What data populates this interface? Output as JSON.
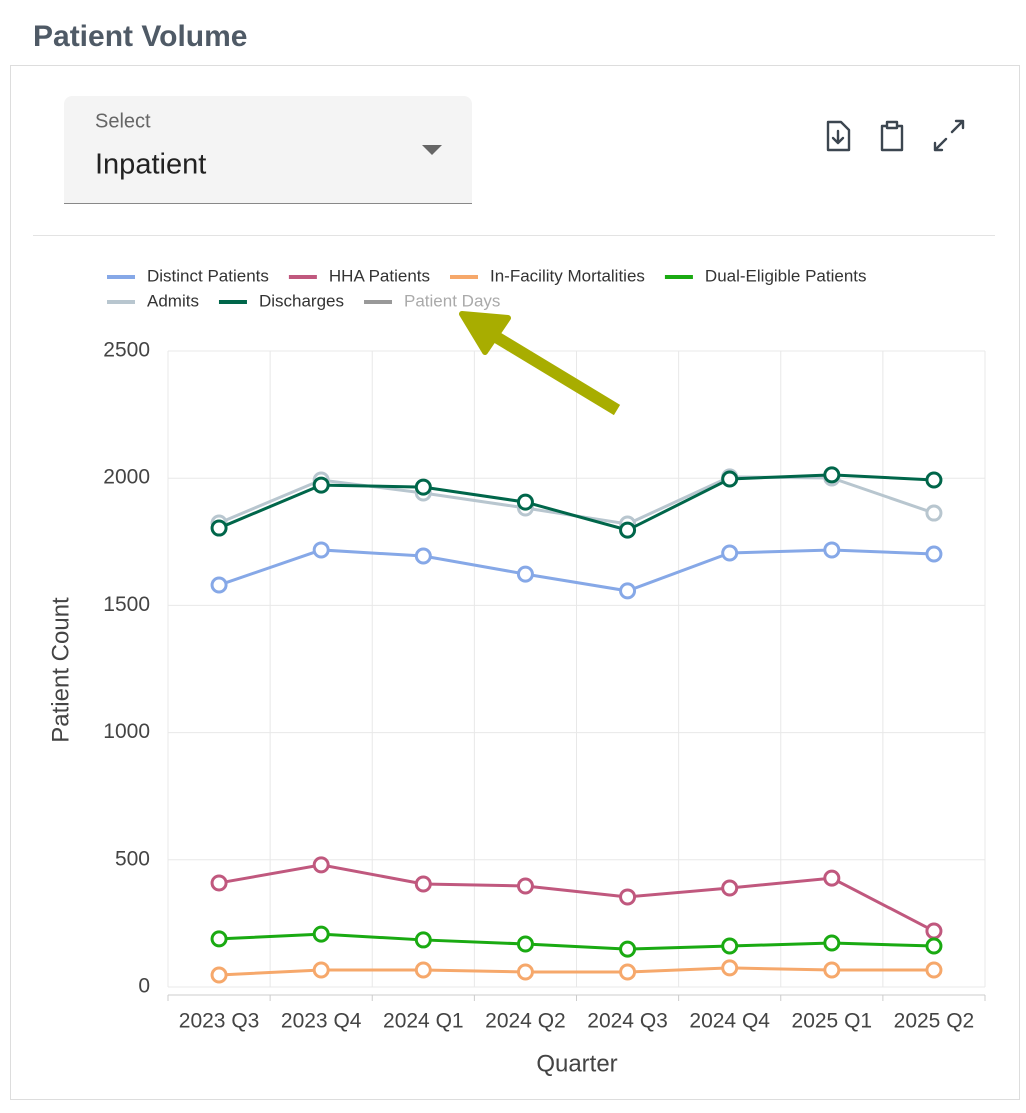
{
  "header": {
    "title": "Patient Volume"
  },
  "select": {
    "label": "Select",
    "value": "Inpatient"
  },
  "chart_data": {
    "type": "line",
    "x_label": "Quarter",
    "y_label": "Patient Count",
    "categories": [
      "2023 Q3",
      "2023 Q4",
      "2024 Q1",
      "2024 Q2",
      "2024 Q3",
      "2024 Q4",
      "2025 Q1",
      "2025 Q2"
    ],
    "series": [
      {
        "name": "Distinct Patients",
        "color": "#86a8e7",
        "values": [
          1580,
          1718,
          1694,
          1623,
          1557,
          1706,
          1718,
          1702
        ]
      },
      {
        "name": "HHA Patients",
        "color": "#c0587e",
        "values": [
          409,
          480,
          405,
          397,
          354,
          389,
          428,
          220
        ]
      },
      {
        "name": "In-Facility Mortalities",
        "color": "#f6a86b",
        "values": [
          47,
          67,
          67,
          59,
          59,
          75,
          67,
          67
        ]
      },
      {
        "name": "Dual-Eligible Patients",
        "color": "#1aaa12",
        "values": [
          189,
          208,
          185,
          169,
          149,
          161,
          173,
          161
        ]
      },
      {
        "name": "Admits",
        "color": "#b8c6cf",
        "values": [
          1824,
          1993,
          1942,
          1883,
          1820,
          2005,
          2001,
          1863
        ]
      },
      {
        "name": "Discharges",
        "color": "#00664a",
        "values": [
          1804,
          1973,
          1965,
          1906,
          1796,
          1997,
          2013,
          1993
        ]
      },
      {
        "name": "Patient Days",
        "color": "#999999",
        "hidden": true
      }
    ],
    "ylim": [
      0,
      2500
    ],
    "yticks": [
      0,
      500,
      1000,
      1500,
      2000,
      2500
    ],
    "grid": true,
    "legend": "top"
  }
}
